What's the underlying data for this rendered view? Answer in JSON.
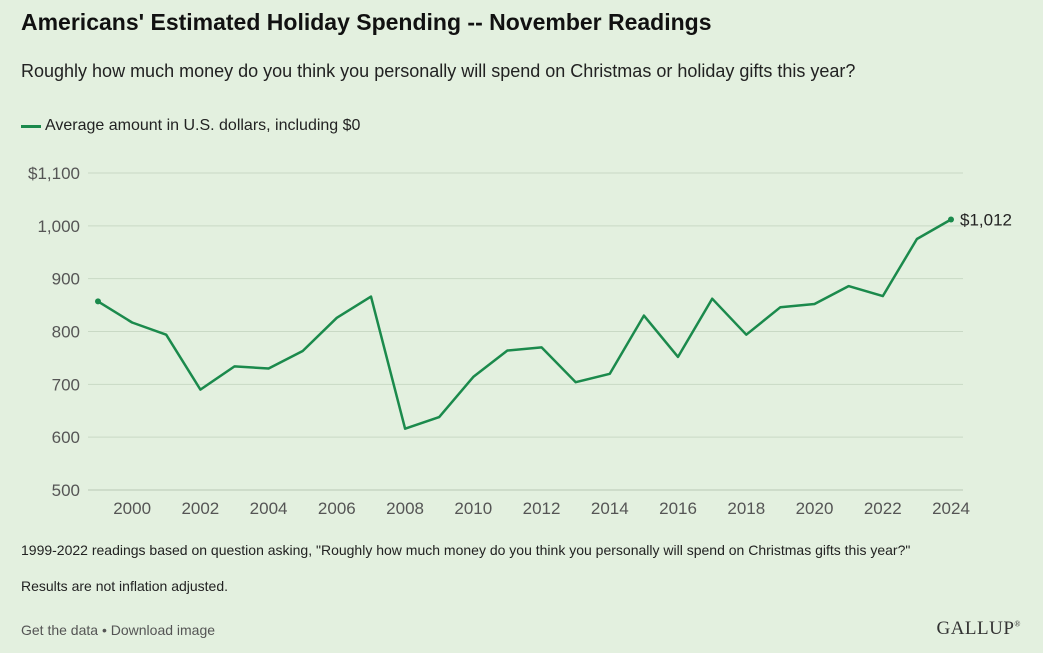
{
  "header": {
    "title": "Americans' Estimated Holiday Spending -- November Readings",
    "subtitle": "Roughly how much money do you think you personally will spend on Christmas or holiday gifts this year?"
  },
  "colors": {
    "series": "#1b8a4c",
    "grid": "#c9d9c5",
    "axis_text": "#555555"
  },
  "chart_data": {
    "type": "line",
    "title": "Americans' Estimated Holiday Spending -- November Readings",
    "legend": "Average amount in U.S. dollars, including $0",
    "legend_position": "top-left",
    "xlabel": "",
    "ylabel": "",
    "ylim": [
      500,
      1100
    ],
    "yticks": [
      500,
      600,
      700,
      800,
      900,
      1000,
      1100
    ],
    "ytick_labels": [
      "500",
      "600",
      "700",
      "800",
      "900",
      "1,000",
      "$1,100"
    ],
    "xlim": [
      1999,
      2024
    ],
    "xticks": [
      2000,
      2002,
      2004,
      2006,
      2008,
      2010,
      2012,
      2014,
      2016,
      2018,
      2020,
      2022,
      2024
    ],
    "grid": true,
    "series": [
      {
        "name": "Average amount in U.S. dollars, including $0",
        "x": [
          1999,
          2000,
          2001,
          2002,
          2003,
          2004,
          2005,
          2006,
          2007,
          2008,
          2009,
          2010,
          2011,
          2012,
          2013,
          2014,
          2015,
          2016,
          2017,
          2018,
          2019,
          2020,
          2021,
          2022,
          2023,
          2024
        ],
        "values": [
          857,
          817,
          794,
          690,
          734,
          730,
          763,
          826,
          866,
          616,
          638,
          714,
          764,
          770,
          704,
          720,
          830,
          752,
          862,
          794,
          846,
          852,
          886,
          867,
          975,
          1012
        ]
      }
    ],
    "annotations": [
      {
        "x": 2024,
        "y": 1012,
        "label": "$1,012"
      }
    ]
  },
  "notes": {
    "question_note": "1999-2022 readings based on question asking, \"Roughly how much money do you think you personally will spend on Christmas gifts this year?\"",
    "inflation_note": "Results are not inflation adjusted."
  },
  "footer": {
    "get_data": "Get the data",
    "separator": " • ",
    "download": "Download image",
    "logo": "GALLUP",
    "logo_mark": "®"
  }
}
